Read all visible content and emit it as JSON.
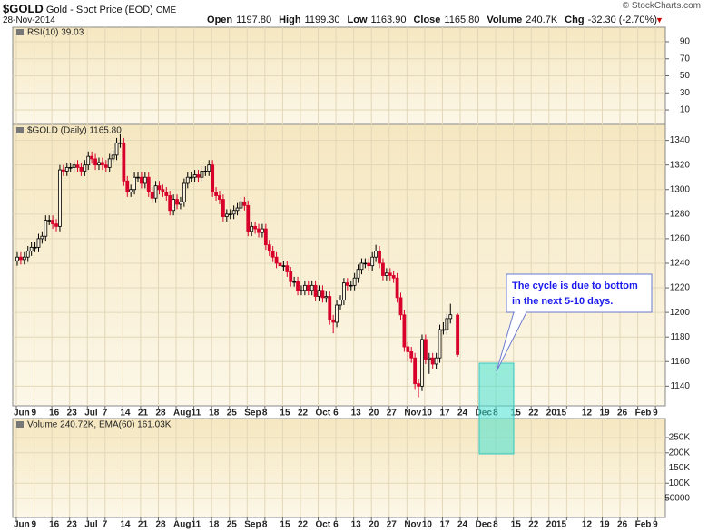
{
  "header": {
    "symbol": "$GOLD",
    "name": "Gold - Spot Price (EOD)",
    "exchange": "CME",
    "date": "28-Nov-2014",
    "quote": [
      {
        "label": "Open",
        "value": "1197.80"
      },
      {
        "label": "High",
        "value": "1199.30"
      },
      {
        "label": "Low",
        "value": "1163.90"
      },
      {
        "label": "Close",
        "value": "1165.80"
      },
      {
        "label": "Volume",
        "value": "240.7K"
      },
      {
        "label": "Chg",
        "value": "-32.30 (-2.70%)"
      }
    ],
    "credit": "© StockCharts.com"
  },
  "chart_data": [
    {
      "type": "line",
      "title": "RSI(10) 39.03",
      "ylim": [
        -7,
        107
      ],
      "yticks": [
        90,
        70,
        50,
        30,
        10
      ],
      "grid": true
    },
    {
      "type": "candlestick",
      "title": "$GOLD (Daily) 1165.80",
      "ylim": [
        1124,
        1353
      ],
      "yticks": [
        1140,
        1160,
        1180,
        1200,
        1220,
        1240,
        1260,
        1280,
        1300,
        1320,
        1340
      ],
      "grid": true,
      "up_color": "#000000",
      "down_color": "#d8002a",
      "week_labels": [
        "Jun",
        "9",
        "16",
        "23",
        "Jul",
        "7",
        "14",
        "21",
        "28",
        "Aug",
        "11",
        "18",
        "25",
        "Sep",
        "8",
        "15",
        "22",
        "Oct",
        "6",
        "13",
        "20",
        "27",
        "Nov",
        "10",
        "17",
        "24",
        "Dec",
        "8",
        "15",
        "22",
        "2015",
        null,
        "12",
        "19",
        "26",
        "Feb",
        "9"
      ],
      "open": [
        1242,
        1245,
        1243,
        1245,
        1250,
        1253,
        1253,
        1260,
        1262,
        1275,
        1275,
        1272,
        1270,
        1316,
        1315,
        1318,
        1318,
        1320,
        1318,
        1315,
        1320,
        1327,
        1325,
        1320,
        1322,
        1320,
        1318,
        1325,
        1328,
        1338,
        1338,
        1307,
        1298,
        1300,
        1310,
        1310,
        1305,
        1310,
        1298,
        1293,
        1303,
        1300,
        1298,
        1295,
        1283,
        1292,
        1288,
        1290,
        1305,
        1310,
        1310,
        1312,
        1310,
        1315,
        1315,
        1320,
        1298,
        1295,
        1292,
        1278,
        1280,
        1280,
        1283,
        1285,
        1290,
        1287,
        1266,
        1270,
        1268,
        1265,
        1268,
        1255,
        1250,
        1245,
        1240,
        1238,
        1238,
        1233,
        1225,
        1225,
        1218,
        1218,
        1222,
        1218,
        1222,
        1213,
        1218,
        1212,
        1213,
        1194,
        1192,
        1206,
        1210,
        1224,
        1222,
        1222,
        1228,
        1235,
        1240,
        1240,
        1238,
        1245,
        1250,
        1240,
        1230,
        1232,
        1230,
        1228,
        1212,
        1198,
        1172,
        1168,
        1163,
        1142,
        1140,
        1178,
        1162,
        1163,
        1158,
        1163,
        1186,
        1186,
        1195,
        null,
        1197.8
      ],
      "high": [
        1249,
        1249,
        1249,
        1254,
        1257,
        1257,
        1264,
        1266,
        1279,
        1279,
        1279,
        1276,
        1320,
        1320,
        1322,
        1322,
        1324,
        1324,
        1322,
        1324,
        1331,
        1331,
        1329,
        1326,
        1326,
        1324,
        1329,
        1332,
        1342,
        1345,
        1342,
        1311,
        1304,
        1314,
        1314,
        1314,
        1314,
        1314,
        1302,
        1307,
        1307,
        1304,
        1302,
        1299,
        1296,
        1296,
        1294,
        1309,
        1314,
        1314,
        1316,
        1316,
        1319,
        1319,
        1324,
        1324,
        1302,
        1299,
        1296,
        1284,
        1284,
        1287,
        1289,
        1294,
        1294,
        1291,
        1274,
        1274,
        1272,
        1272,
        1272,
        1259,
        1254,
        1249,
        1244,
        1242,
        1242,
        1237,
        1229,
        1229,
        1222,
        1226,
        1226,
        1226,
        1226,
        1222,
        1222,
        1217,
        1217,
        1198,
        1210,
        1214,
        1228,
        1228,
        1226,
        1232,
        1239,
        1244,
        1244,
        1244,
        1249,
        1255,
        1254,
        1244,
        1236,
        1236,
        1234,
        1232,
        1216,
        1202,
        1176,
        1172,
        1167,
        1146,
        1182,
        1182,
        1167,
        1167,
        1167,
        1190,
        1192,
        1199,
        1207,
        null,
        1199.3
      ],
      "low": [
        1238,
        1239,
        1239,
        1241,
        1246,
        1249,
        1249,
        1256,
        1258,
        1271,
        1268,
        1266,
        1266,
        1311,
        1311,
        1314,
        1314,
        1314,
        1311,
        1311,
        1316,
        1321,
        1316,
        1316,
        1316,
        1314,
        1314,
        1321,
        1324,
        1334,
        1303,
        1294,
        1294,
        1296,
        1306,
        1301,
        1301,
        1294,
        1289,
        1289,
        1296,
        1294,
        1291,
        1279,
        1279,
        1284,
        1284,
        1286,
        1301,
        1306,
        1306,
        1306,
        1306,
        1311,
        1311,
        1294,
        1291,
        1288,
        1274,
        1274,
        1276,
        1276,
        1279,
        1281,
        1283,
        1262,
        1262,
        1264,
        1261,
        1261,
        1251,
        1246,
        1241,
        1236,
        1234,
        1234,
        1229,
        1221,
        1221,
        1214,
        1214,
        1214,
        1214,
        1214,
        1209,
        1209,
        1208,
        1208,
        1190,
        1183,
        1188,
        1202,
        1206,
        1218,
        1218,
        1218,
        1224,
        1231,
        1236,
        1234,
        1234,
        1241,
        1236,
        1226,
        1226,
        1226,
        1224,
        1208,
        1194,
        1168,
        1160,
        1159,
        1137,
        1131,
        1136,
        1158,
        1150,
        1154,
        1154,
        1159,
        1182,
        1182,
        1191,
        null,
        1163.9
      ],
      "close": [
        1245,
        1243,
        1245,
        1250,
        1253,
        1253,
        1260,
        1262,
        1275,
        1275,
        1272,
        1270,
        1316,
        1315,
        1318,
        1318,
        1320,
        1318,
        1315,
        1320,
        1327,
        1325,
        1320,
        1322,
        1320,
        1318,
        1325,
        1328,
        1338,
        1338,
        1307,
        1298,
        1300,
        1310,
        1310,
        1305,
        1310,
        1298,
        1293,
        1303,
        1300,
        1298,
        1295,
        1283,
        1292,
        1288,
        1290,
        1305,
        1310,
        1310,
        1312,
        1310,
        1315,
        1315,
        1320,
        1298,
        1295,
        1292,
        1278,
        1280,
        1280,
        1283,
        1285,
        1290,
        1287,
        1266,
        1270,
        1268,
        1265,
        1268,
        1255,
        1250,
        1245,
        1240,
        1238,
        1238,
        1233,
        1225,
        1225,
        1218,
        1218,
        1222,
        1218,
        1222,
        1213,
        1218,
        1212,
        1213,
        1194,
        1192,
        1206,
        1210,
        1224,
        1222,
        1222,
        1228,
        1235,
        1240,
        1240,
        1238,
        1245,
        1250,
        1240,
        1230,
        1232,
        1230,
        1228,
        1212,
        1198,
        1172,
        1168,
        1163,
        1142,
        1140,
        1178,
        1162,
        1163,
        1158,
        1163,
        1186,
        1186,
        1195,
        1198.1,
        null,
        1165.8
      ],
      "annotation": [
        "The cycle is due to bottom",
        "in the next 5-10 days."
      ]
    },
    {
      "type": "bar",
      "title": "Volume 240.72K, EMA(60) 161.03K",
      "ylim": [
        -13000,
        313000
      ],
      "yticks": [
        {
          "value": 250000,
          "label": "250K"
        },
        {
          "value": 200000,
          "label": "200K"
        },
        {
          "value": 150000,
          "label": "150K"
        },
        {
          "value": 100000,
          "label": "100K"
        },
        50000
      ],
      "grid": true
    }
  ]
}
